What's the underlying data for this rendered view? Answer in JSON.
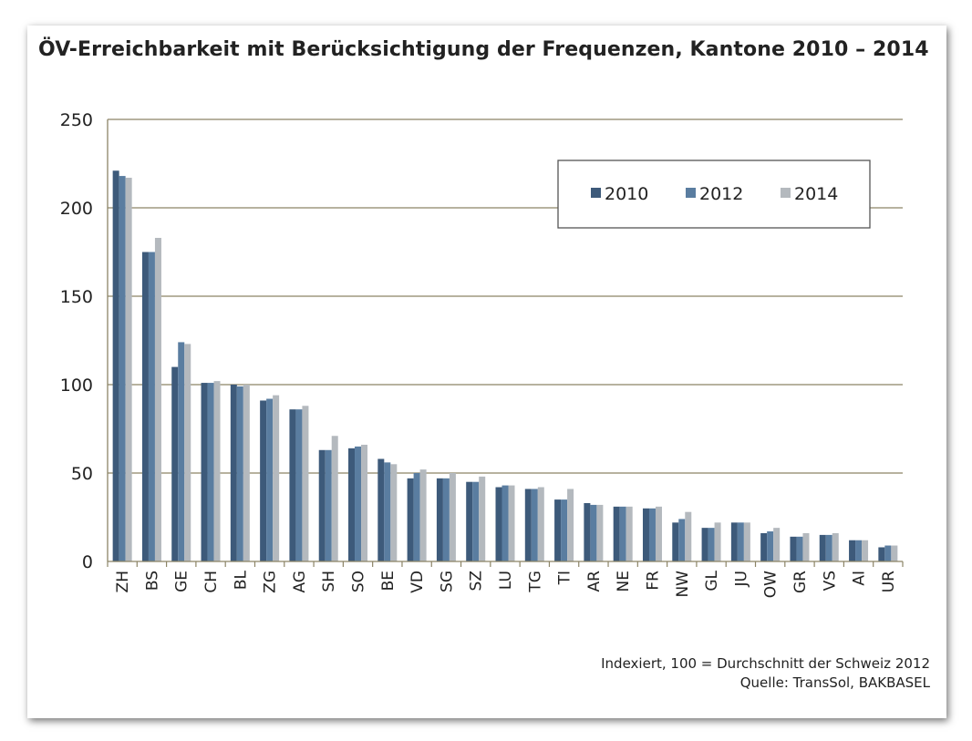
{
  "title": "ÖV-Erreichbarkeit mit Berücksichtigung der Frequenzen, Kantone 2010 – 2014",
  "footnote": {
    "line1": "Indexiert, 100 = Durchschnitt der Schweiz 2012",
    "line2": "Quelle: TransSol, BAKBASEL"
  },
  "chart_data": {
    "type": "bar",
    "title": "ÖV-Erreichbarkeit mit Berücksichtigung der Frequenzen, Kantone 2010 – 2014",
    "xlabel": "",
    "ylabel": "",
    "ylim": [
      0,
      250
    ],
    "yticks": [
      0,
      50,
      100,
      150,
      200,
      250
    ],
    "grid": true,
    "legend_position": "top-right",
    "categories": [
      "ZH",
      "BS",
      "GE",
      "CH",
      "BL",
      "ZG",
      "AG",
      "SH",
      "SO",
      "BE",
      "VD",
      "SG",
      "SZ",
      "LU",
      "TG",
      "TI",
      "AR",
      "NE",
      "FR",
      "NW",
      "GL",
      "JU",
      "OW",
      "GR",
      "VS",
      "AI",
      "UR"
    ],
    "series": [
      {
        "name": "2010",
        "color": "#3d5a7a",
        "values": [
          221,
          175,
          110,
          101,
          100,
          91,
          86,
          63,
          64,
          58,
          47,
          47,
          45,
          42,
          41,
          35,
          33,
          31,
          30,
          22,
          19,
          22,
          16,
          14,
          15,
          12,
          8
        ]
      },
      {
        "name": "2012",
        "color": "#5a7da0",
        "values": [
          218,
          175,
          124,
          101,
          99,
          92,
          86,
          63,
          65,
          56,
          50,
          47,
          45,
          43,
          41,
          35,
          32,
          31,
          30,
          24,
          19,
          22,
          17,
          14,
          15,
          12,
          9
        ]
      },
      {
        "name": "2014",
        "color": "#b4b9be",
        "values": [
          217,
          183,
          123,
          102,
          100,
          94,
          88,
          71,
          66,
          55,
          52,
          50,
          48,
          43,
          42,
          41,
          32,
          31,
          31,
          28,
          22,
          22,
          19,
          16,
          16,
          12,
          9
        ]
      }
    ]
  }
}
